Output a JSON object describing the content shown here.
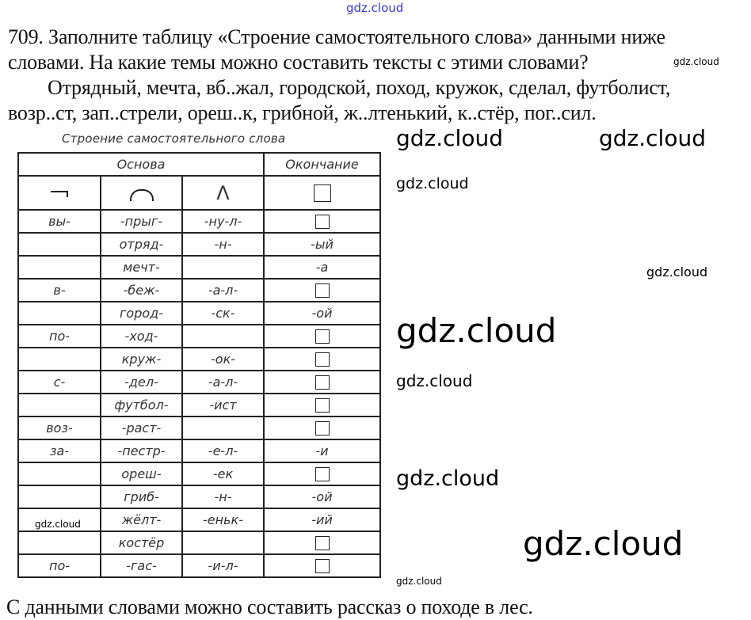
{
  "watermark": "gdz.cloud",
  "exercise": {
    "lines": [
      "709. Заполните таблицу «Строение самостоятельного слова» данными ниже",
      "словами. На какие темы можно составить тексты с этими словами?",
      "Отрядный, мечта, вб..жал, городской, поход, кружок, сделал, футболист,",
      "возр..ст, зап..стрели, ореш..к, грибной, ж..лтенький, к..стёр, пог..сил."
    ]
  },
  "table": {
    "caption": "Строение самостоятельного слова",
    "header": {
      "stem": "Основа",
      "ending": "Окончание"
    },
    "symbols": [
      "prefix-icon",
      "root-icon",
      "suffix-icon",
      "ending-box-icon"
    ],
    "suffix_symbol": "Λ",
    "rows": [
      {
        "prefix": "вы-",
        "root": "-прыг-",
        "suffix": "-ну-л-",
        "ending": ""
      },
      {
        "prefix": "",
        "root": "отряд-",
        "suffix": "-н-",
        "ending": "-ый"
      },
      {
        "prefix": "",
        "root": "мечт-",
        "suffix": "",
        "ending": "-а"
      },
      {
        "prefix": "в-",
        "root": "-беж-",
        "suffix": "-а-л-",
        "ending": ""
      },
      {
        "prefix": "",
        "root": "город-",
        "suffix": "-ск-",
        "ending": "-ой"
      },
      {
        "prefix": "по-",
        "root": "-ход-",
        "suffix": "",
        "ending": ""
      },
      {
        "prefix": "",
        "root": "круж-",
        "suffix": "-ок-",
        "ending": ""
      },
      {
        "prefix": "с-",
        "root": "-дел-",
        "suffix": "-а-л-",
        "ending": ""
      },
      {
        "prefix": "",
        "root": "футбол-",
        "suffix": "-ист",
        "ending": ""
      },
      {
        "prefix": "воз-",
        "root": "-раст-",
        "suffix": "",
        "ending": ""
      },
      {
        "prefix": "за-",
        "root": "-пестр-",
        "suffix": "-е-л-",
        "ending": "-и"
      },
      {
        "prefix": "",
        "root": "ореш-",
        "suffix": "-ек",
        "ending": ""
      },
      {
        "prefix": "",
        "root": "гриб-",
        "suffix": "-н-",
        "ending": "-ой"
      },
      {
        "prefix": "",
        "root": "жёлт-",
        "suffix": "-еньк-",
        "ending": "-ий"
      },
      {
        "prefix": "",
        "root": "костёр",
        "suffix": "",
        "ending": ""
      },
      {
        "prefix": "по-",
        "root": "-гас-",
        "suffix": "-и-л-",
        "ending": ""
      }
    ]
  },
  "answer": "С данными словами можно составить рассказ о походе в лес."
}
